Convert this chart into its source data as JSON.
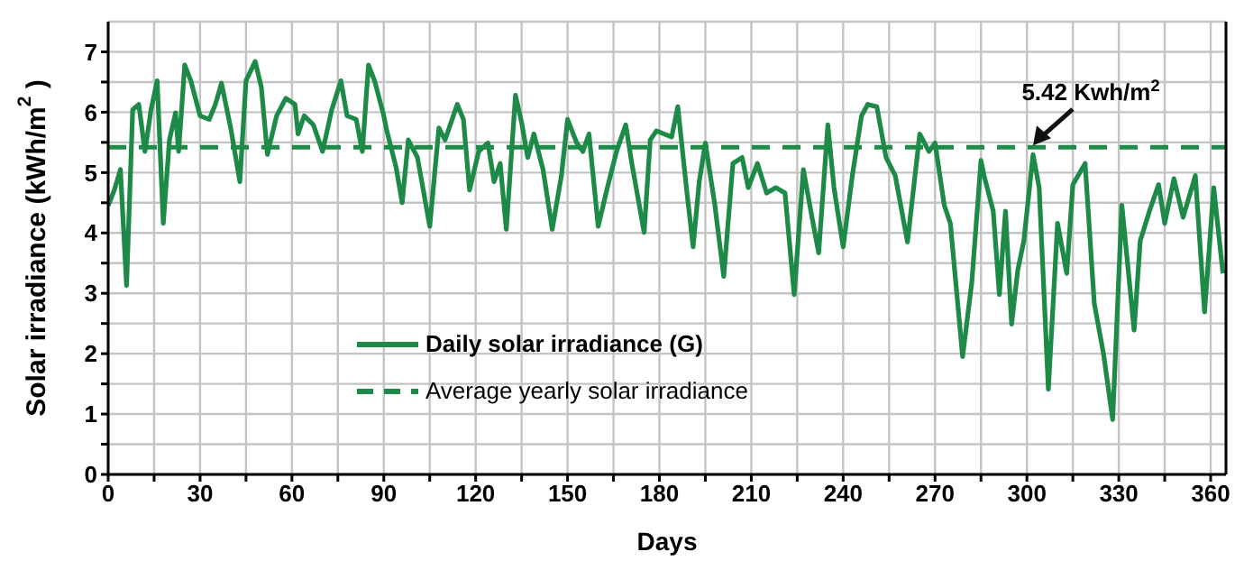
{
  "chart_data": {
    "type": "line",
    "xlabel": "Days",
    "ylabel": "Solar irradiance (kWh/m$^{2}$)",
    "x": [
      0,
      2,
      4,
      6,
      8,
      10,
      12,
      14,
      16,
      18,
      20,
      22,
      23,
      25,
      27,
      30,
      33,
      35,
      37,
      40,
      43,
      45,
      48,
      50,
      52,
      55,
      58,
      61,
      62,
      64,
      67,
      70,
      73,
      76,
      78,
      81,
      83,
      85,
      87,
      90,
      91,
      94,
      96,
      98,
      101,
      105,
      108,
      110,
      114,
      116,
      118,
      121,
      124,
      126,
      128,
      130,
      133,
      135,
      137,
      139,
      142,
      145,
      148,
      150,
      153,
      155,
      157,
      160,
      163,
      166,
      169,
      171,
      175,
      177,
      179,
      184,
      186,
      189,
      191,
      193,
      195,
      198,
      201,
      204,
      207,
      209,
      212,
      215,
      218,
      221,
      224,
      227,
      230,
      232,
      235,
      237,
      240,
      243,
      246,
      248,
      251,
      254,
      257,
      261,
      265,
      268,
      270,
      273,
      275,
      279,
      282,
      285,
      286,
      289,
      291,
      293,
      295,
      297,
      299,
      302,
      304,
      307,
      310,
      313,
      315,
      319,
      322,
      325,
      328,
      331,
      335,
      337,
      340,
      343,
      345,
      348,
      351,
      355,
      358,
      361,
      364
    ],
    "series": [
      {
        "name": "Daily solar irradiance (G)",
        "color": "#1e8a47",
        "line_style": "solid",
        "values": [
          4.45,
          4.71,
          5.05,
          3.13,
          6.04,
          6.13,
          5.35,
          6.04,
          6.52,
          4.16,
          5.54,
          5.99,
          5.35,
          6.78,
          6.52,
          5.94,
          5.88,
          6.13,
          6.48,
          5.74,
          4.85,
          6.52,
          6.84,
          6.42,
          5.3,
          5.94,
          6.23,
          6.13,
          5.64,
          5.94,
          5.79,
          5.35,
          6.04,
          6.52,
          5.94,
          5.88,
          5.35,
          6.78,
          6.52,
          5.94,
          5.69,
          5.09,
          4.5,
          5.54,
          5.25,
          4.11,
          5.74,
          5.54,
          6.13,
          5.88,
          4.71,
          5.35,
          5.49,
          4.85,
          5.15,
          4.06,
          6.28,
          5.83,
          5.25,
          5.64,
          5.05,
          4.06,
          4.95,
          5.88,
          5.49,
          5.35,
          5.64,
          4.11,
          4.75,
          5.35,
          5.79,
          5.15,
          4.01,
          5.54,
          5.69,
          5.59,
          6.09,
          4.66,
          3.77,
          4.85,
          5.49,
          4.5,
          3.28,
          5.15,
          5.25,
          4.75,
          5.15,
          4.66,
          4.75,
          4.66,
          2.98,
          5.05,
          4.21,
          3.67,
          5.79,
          4.75,
          3.77,
          4.95,
          5.94,
          6.13,
          6.09,
          5.25,
          4.95,
          3.85,
          5.64,
          5.35,
          5.49,
          4.46,
          4.16,
          1.95,
          3.18,
          5.2,
          4.95,
          4.36,
          2.98,
          4.36,
          2.49,
          3.38,
          3.87,
          5.3,
          4.75,
          1.41,
          4.16,
          3.33,
          4.8,
          5.15,
          2.83,
          2.0,
          0.91,
          4.46,
          2.39,
          3.87,
          4.36,
          4.8,
          4.16,
          4.9,
          4.26,
          4.95,
          2.69,
          4.75,
          3.33
        ]
      }
    ],
    "xlim": [
      0,
      365
    ],
    "xticks": [
      0,
      {
        "value": 15,
        "label": null
      },
      30,
      {
        "value": 45,
        "label": null
      },
      60,
      {
        "value": 75,
        "label": null
      },
      90,
      {
        "value": 105,
        "label": null
      },
      120,
      {
        "value": 135,
        "label": null
      },
      150,
      {
        "value": 165,
        "label": null
      },
      180,
      {
        "value": 195,
        "label": null
      },
      210,
      {
        "value": 225,
        "label": null
      },
      240,
      {
        "value": 255,
        "label": null
      },
      270,
      {
        "value": 285,
        "label": null
      },
      300,
      {
        "value": 315,
        "label": null
      },
      330,
      {
        "value": 345,
        "label": null
      },
      360
    ],
    "ylim": [
      0,
      7.5
    ],
    "yticks": [
      0,
      {
        "value": 0.5,
        "label": null
      },
      1,
      {
        "value": 1.5,
        "label": null
      },
      2,
      {
        "value": 2.5,
        "label": null
      },
      3,
      {
        "value": 3.5,
        "label": null
      },
      4,
      {
        "value": 4.5,
        "label": null
      },
      5,
      {
        "value": 5.5,
        "label": null
      },
      6,
      {
        "value": 6.5,
        "label": null
      },
      7
    ],
    "ref_lines": [
      {
        "axis": "y",
        "value": 5.42,
        "label": "Average yearly solar irradiance",
        "color": "#1e8a47",
        "line_style": "dashed"
      }
    ],
    "annotations": [
      {
        "text": "5.42 Kwh/m$^{2}$",
        "x": 302,
        "y": 5.42
      }
    ],
    "grid": true,
    "legend": "bottom",
    "marker": "none"
  }
}
